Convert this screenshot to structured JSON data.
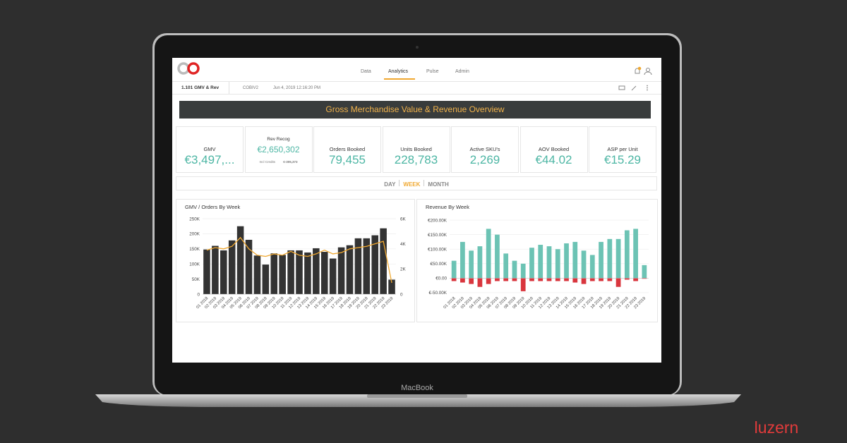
{
  "nav": [
    "Data",
    "Analytics",
    "Pulse",
    "Admin"
  ],
  "nav_active": 1,
  "toolbar": {
    "report": "1.101 GMV & Rev",
    "source": "COBIV2",
    "timestamp": "Jun 4, 2019 12:16:20 PM"
  },
  "banner": "Gross Merchandise Value & Revenue Overview",
  "kpis": [
    {
      "label": "GMV",
      "value": "€3,497,..."
    },
    {
      "label": "Rev Recog",
      "value": "€2,650,302",
      "note_label": "Incl Credits",
      "note_value": "€-305,373"
    },
    {
      "label": "Orders Booked",
      "value": "79,455"
    },
    {
      "label": "Units Booked",
      "value": "228,783"
    },
    {
      "label": "Active SKU's",
      "value": "2,269"
    },
    {
      "label": "AOV Booked",
      "value": "€44.02"
    },
    {
      "label": "ASP per Unit",
      "value": "€15.29"
    }
  ],
  "periods": [
    "DAY",
    "WEEK",
    "MONTH"
  ],
  "period_active": 1,
  "chart_data": [
    {
      "type": "bar",
      "title": "GMV / Orders By Week",
      "categories": [
        "01 2018",
        "02 2019",
        "03 2019",
        "04 2019",
        "05 2019",
        "06 2019",
        "07 2019",
        "08 2019",
        "09 2019",
        "10 2019",
        "11 2019",
        "12 2019",
        "13 2019",
        "14 2019",
        "15 2019",
        "16 2019",
        "17 2019",
        "18 2019",
        "19 2019",
        "20 2019",
        "21 2019",
        "22 2019",
        "23 2019"
      ],
      "series": [
        {
          "type": "bar",
          "color": "#333333",
          "values": [
            148000,
            160000,
            145000,
            178000,
            225000,
            180000,
            128000,
            98000,
            135000,
            130000,
            145000,
            145000,
            138000,
            152000,
            140000,
            118000,
            155000,
            162000,
            185000,
            185000,
            195000,
            218000,
            48000
          ]
        },
        {
          "type": "line",
          "axis": "y2",
          "color": "#f0a830",
          "values": [
            3500,
            3700,
            3600,
            3800,
            4500,
            3600,
            3100,
            3000,
            3200,
            3100,
            3400,
            3100,
            3000,
            3200,
            3500,
            3200,
            3300,
            3600,
            3700,
            3800,
            4000,
            4200,
            900
          ]
        }
      ],
      "ylim": [
        0,
        250000
      ],
      "yticks": [
        0,
        {
          "value": 50000,
          "label": "50K"
        },
        {
          "value": 100000,
          "label": "100K"
        },
        {
          "value": 150000,
          "label": "150K"
        },
        {
          "value": 200000,
          "label": "200K"
        },
        {
          "value": 250000,
          "label": "250K"
        }
      ],
      "y2lim": [
        0,
        6000
      ],
      "y2ticks": [
        0,
        {
          "value": 2000,
          "label": "2K"
        },
        {
          "value": 4000,
          "label": "4K"
        },
        {
          "value": 6000,
          "label": "6K"
        }
      ],
      "grid": true
    },
    {
      "type": "bar",
      "stacked": true,
      "title": "Revenue By Week",
      "categories": [
        "01 2018",
        "02 2019",
        "03 2019",
        "04 2019",
        "05 2019",
        "06 2019",
        "07 2019",
        "08 2019",
        "09 2019",
        "10 2019",
        "11 2019",
        "12 2019",
        "13 2019",
        "14 2019",
        "15 2019",
        "16 2019",
        "17 2019",
        "18 2019",
        "19 2019",
        "20 2019",
        "21 2019",
        "22 2019",
        "23 2019"
      ],
      "series": [
        {
          "color": "#6cc3b4",
          "values": [
            60000,
            125000,
            95000,
            110000,
            170000,
            150000,
            85000,
            60000,
            50000,
            105000,
            115000,
            110000,
            100000,
            120000,
            125000,
            95000,
            80000,
            125000,
            135000,
            135000,
            165000,
            170000,
            45000
          ]
        },
        {
          "color": "#d9363e",
          "values": [
            -10000,
            -15000,
            -20000,
            -30000,
            -20000,
            -10000,
            -10000,
            -10000,
            -45000,
            -10000,
            -10000,
            -10000,
            -10000,
            -10000,
            -15000,
            -20000,
            -10000,
            -10000,
            -10000,
            -30000,
            -5000,
            -10000,
            -2000
          ]
        }
      ],
      "ylim": [
        -55000,
        205000
      ],
      "yticks": [
        {
          "value": -50000,
          "label": "€-50.00K"
        },
        {
          "value": 0,
          "label": "€0.00"
        },
        {
          "value": 50000,
          "label": "€50.00K"
        },
        {
          "value": 100000,
          "label": "€100.00K"
        },
        {
          "value": 150000,
          "label": "€150.00K"
        },
        {
          "value": 200000,
          "label": "€200.00K"
        }
      ],
      "grid": true
    }
  ],
  "device": "MacBook",
  "brand": "luzern"
}
